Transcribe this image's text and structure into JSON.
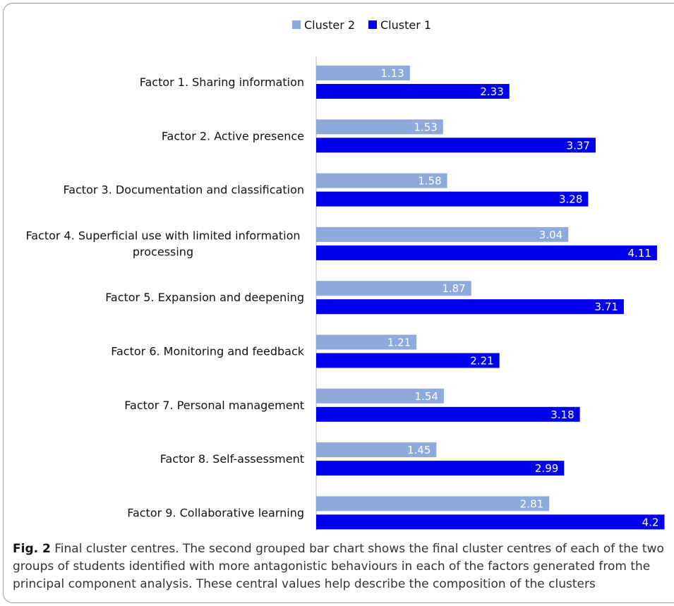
{
  "caption": {
    "label": "Fig. 2",
    "text": " Final cluster centres. The second grouped bar chart shows the final cluster centres of each of the two groups of students identified with more antagonistic behaviours in each of the factors generated from the principal component analysis. These central values help describe the composition of the clusters"
  },
  "chart_data": {
    "type": "bar",
    "orientation": "horizontal",
    "title": "",
    "xlabel": "",
    "ylabel": "",
    "xlim": [
      0,
      4.2
    ],
    "grid": false,
    "legend_position": "top-center",
    "categories": [
      [
        "Factor 1. Sharing information"
      ],
      [
        "Factor 2. Active presence"
      ],
      [
        "Factor 3. Documentation and classification"
      ],
      [
        "Factor 4. Superficial use with limited information",
        "processing"
      ],
      [
        "Factor 5. Expansion and deepening"
      ],
      [
        "Factor 6. Monitoring and feedback"
      ],
      [
        "Factor 7. Personal management"
      ],
      [
        "Factor 8. Self-assessment"
      ],
      [
        "Factor 9. Collaborative learning"
      ]
    ],
    "series": [
      {
        "name": "Cluster 2",
        "color": "#8EA9DB",
        "values": [
          1.13,
          1.53,
          1.58,
          3.04,
          1.87,
          1.21,
          1.54,
          1.45,
          2.81
        ],
        "labels": [
          "1.13",
          "1.53",
          "1.58",
          "3.04",
          "1.87",
          "1.21",
          "1.54",
          "1.45",
          "2.81"
        ]
      },
      {
        "name": "Cluster 1",
        "color": "#0000EE",
        "values": [
          2.33,
          3.37,
          3.28,
          4.11,
          3.71,
          2.21,
          3.18,
          2.99,
          4.2
        ],
        "labels": [
          "2.33",
          "3.37",
          "3.28",
          "4.11",
          "3.71",
          "2.21",
          "3.18",
          "2.99",
          "4.2"
        ]
      }
    ],
    "legend_order": [
      0,
      1
    ]
  }
}
